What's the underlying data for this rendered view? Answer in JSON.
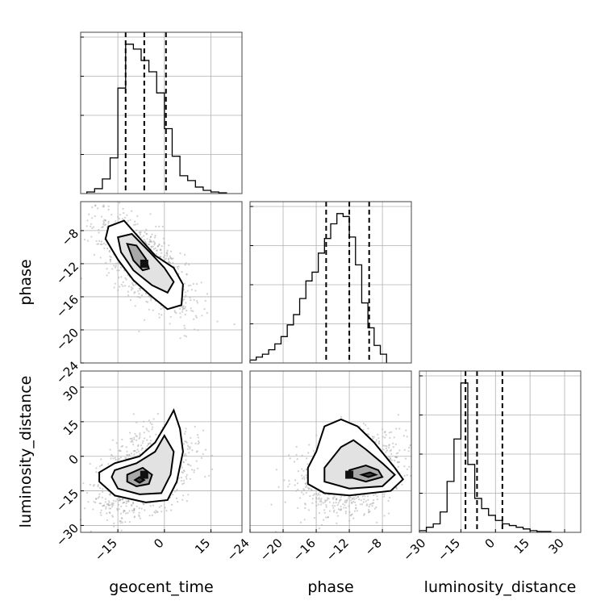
{
  "chart_data": {
    "type": "corner",
    "parameters": [
      {
        "name": "geocent_time",
        "ticks": [
          -15,
          0,
          15
        ],
        "range": [
          -27,
          25
        ],
        "quantiles": [
          -12.5,
          -6.5,
          0.5
        ]
      },
      {
        "name": "phase",
        "ticks": [
          -24,
          -20,
          -16,
          -12,
          -8
        ],
        "range": [
          -24,
          -4.5
        ],
        "quantiles": [
          -14.8,
          -12,
          -9.6
        ]
      },
      {
        "name": "luminosity_distance",
        "ticks": [
          -30,
          -15,
          0,
          15,
          30
        ],
        "range": [
          -33,
          37
        ],
        "quantiles": [
          -13,
          -8,
          3
        ]
      }
    ],
    "row_labels": [
      "phase",
      "luminosity_distance"
    ],
    "x_labels": [
      "geocent_time",
      "phase",
      "luminosity_distance"
    ],
    "row_ticks": {
      "phase": [
        -8,
        -12,
        -16,
        -20,
        -24
      ],
      "luminosity_distance": [
        30,
        15,
        0,
        -15,
        -30
      ]
    },
    "histograms": [
      {
        "parameter": "geocent_time",
        "bin_start": -25,
        "bin_width": 2.5,
        "counts": [
          1,
          3,
          9,
          22,
          65,
          92,
          89,
          82,
          75,
          62,
          40,
          23,
          11,
          8,
          4,
          2,
          1,
          0.5
        ]
      },
      {
        "parameter": "phase",
        "bin_start": -24,
        "bin_width": 0.75,
        "counts": [
          2,
          4,
          6,
          9,
          13,
          18,
          26,
          33,
          44,
          56,
          62,
          75,
          85,
          95,
          102,
          100,
          86,
          67,
          41,
          24,
          12,
          6
        ]
      },
      {
        "parameter": "luminosity_distance",
        "bin_start": -33,
        "bin_width": 3,
        "counts": [
          1,
          3,
          5,
          12,
          30,
          55,
          88,
          40,
          20,
          14,
          10,
          7,
          5,
          4,
          3,
          2,
          1,
          0.5,
          0.5
        ]
      }
    ],
    "pairs": [
      {
        "x": "geocent_time",
        "y": "phase",
        "correlation": -0.7,
        "contour_levels": [
          [
            [
              -18,
              -7.5
            ],
            [
              -13,
              -6.8
            ],
            [
              -9,
              -8.5
            ],
            [
              -3,
              -11
            ],
            [
              3,
              -12.5
            ],
            [
              6,
              -14.5
            ],
            [
              5.5,
              -17
            ],
            [
              1,
              -17.5
            ],
            [
              -4,
              -16
            ],
            [
              -10,
              -14
            ],
            [
              -15,
              -11.5
            ],
            [
              -19,
              -9
            ]
          ],
          [
            [
              -15,
              -8.8
            ],
            [
              -10.5,
              -8.4
            ],
            [
              -5,
              -10.5
            ],
            [
              0,
              -12.5
            ],
            [
              3,
              -14.2
            ],
            [
              1,
              -15.5
            ],
            [
              -4,
              -14.6
            ],
            [
              -10,
              -12.8
            ],
            [
              -14,
              -10.6
            ]
          ],
          [
            [
              -12,
              -9.6
            ],
            [
              -9,
              -9.8
            ],
            [
              -6,
              -11.4
            ],
            [
              -5,
              -12.6
            ],
            [
              -7,
              -12.8
            ],
            [
              -10,
              -11.6
            ]
          ]
        ]
      },
      {
        "x": "geocent_time",
        "y": "luminosity_distance",
        "correlation": 0.4,
        "contour_levels": [
          [
            [
              -21,
              -7
            ],
            [
              -16,
              -3
            ],
            [
              -8,
              0
            ],
            [
              -3,
              6
            ],
            [
              1,
              15
            ],
            [
              3,
              20
            ],
            [
              5,
              12
            ],
            [
              6,
              2
            ],
            [
              4,
              -11
            ],
            [
              1,
              -19
            ],
            [
              -6,
              -20
            ],
            [
              -16,
              -17
            ],
            [
              -21,
              -11
            ]
          ],
          [
            [
              -16,
              -6
            ],
            [
              -9,
              -3
            ],
            [
              -3,
              2
            ],
            [
              0,
              9
            ],
            [
              3,
              2
            ],
            [
              2,
              -8
            ],
            [
              -1,
              -16
            ],
            [
              -8,
              -16.5
            ],
            [
              -15,
              -14
            ],
            [
              -17,
              -9
            ]
          ],
          [
            [
              -12,
              -8
            ],
            [
              -7,
              -5
            ],
            [
              -4,
              -8
            ],
            [
              -5,
              -12
            ],
            [
              -9,
              -13
            ],
            [
              -12,
              -11
            ]
          ],
          [
            [
              -9.5,
              -10.3
            ],
            [
              -8,
              -9
            ],
            [
              -6.5,
              -10.3
            ],
            [
              -8,
              -11.5
            ]
          ]
        ]
      },
      {
        "x": "phase",
        "y": "luminosity_distance",
        "correlation": 0.3,
        "contour_levels": [
          [
            [
              -17,
              -5
            ],
            [
              -16,
              2
            ],
            [
              -15,
              13
            ],
            [
              -13,
              16
            ],
            [
              -11,
              13
            ],
            [
              -9,
              6
            ],
            [
              -6.5,
              -5
            ],
            [
              -5.5,
              -10
            ],
            [
              -7,
              -15
            ],
            [
              -12,
              -17
            ],
            [
              -15,
              -16
            ],
            [
              -17,
              -12
            ]
          ],
          [
            [
              -15,
              -5
            ],
            [
              -13,
              4
            ],
            [
              -11.5,
              7
            ],
            [
              -10,
              3
            ],
            [
              -8,
              -3
            ],
            [
              -6.5,
              -8
            ],
            [
              -8,
              -13
            ],
            [
              -12,
              -14
            ],
            [
              -15,
              -11
            ]
          ],
          [
            [
              -12,
              -6
            ],
            [
              -10,
              -4
            ],
            [
              -8.5,
              -6
            ],
            [
              -8,
              -9
            ],
            [
              -10,
              -11
            ],
            [
              -12,
              -9
            ]
          ],
          [
            [
              -10.5,
              -8
            ],
            [
              -9.5,
              -7
            ],
            [
              -8.8,
              -8
            ],
            [
              -9.7,
              -9
            ]
          ]
        ]
      }
    ],
    "grid": true
  }
}
